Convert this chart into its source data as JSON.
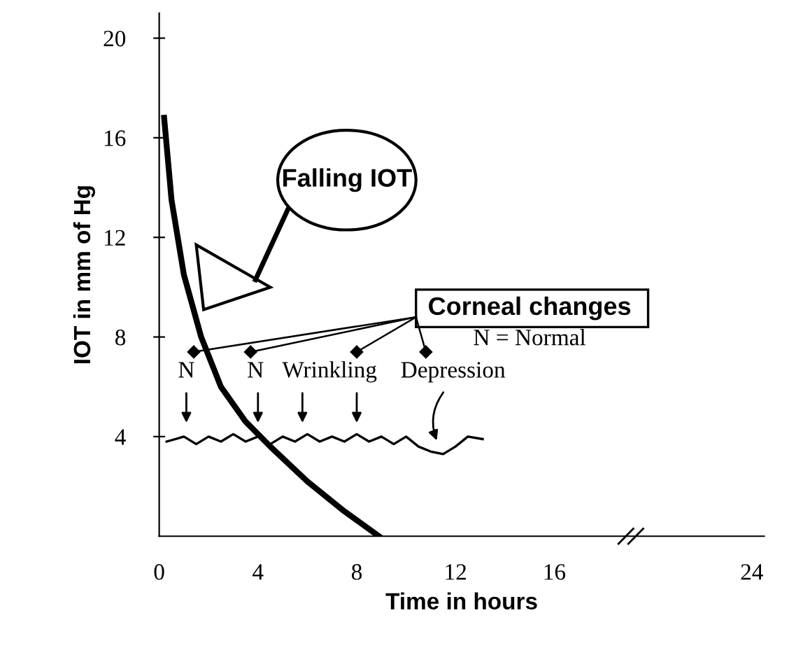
{
  "chart_data": {
    "type": "line",
    "xlabel": "Time in hours",
    "ylabel": "IOT in mm of Hg",
    "xlim": [
      0,
      24.5
    ],
    "ylim": [
      0,
      21
    ],
    "xticks": [
      0,
      4,
      8,
      12,
      16,
      24
    ],
    "yticks": [
      4,
      8,
      12,
      16,
      20
    ],
    "grid": false,
    "legend": false,
    "marker": "none",
    "line_style": "solid",
    "series": [
      {
        "color": "#000000",
        "x": [
          0.2,
          0.5,
          1,
          1.7,
          2.5,
          3.5,
          4.5,
          6,
          7.5,
          8.9
        ],
        "values": [
          16.8,
          13.5,
          10.5,
          8,
          6,
          4.6,
          3.6,
          2.2,
          1,
          0
        ]
      },
      {
        "color": "#000000",
        "x": [
          0.3,
          1,
          1.5,
          2,
          2.5,
          3,
          3.5,
          4,
          4.5,
          5,
          5.5,
          6,
          6.5,
          7,
          7.5,
          8,
          8.5,
          9,
          9.5,
          10,
          10.5,
          11,
          11.5,
          12,
          12.5,
          13.1
        ],
        "values": [
          3.8,
          4,
          3.7,
          4,
          3.8,
          4.1,
          3.8,
          4,
          3.7,
          4,
          3.8,
          4.1,
          3.8,
          4,
          3.8,
          4.1,
          3.8,
          4,
          3.7,
          4,
          3.6,
          3.4,
          3.3,
          3.6,
          4,
          3.9
        ]
      }
    ],
    "annotations": [
      "Falling IOT",
      "Corneal changes",
      "N = Normal",
      "N",
      "N",
      "Wrinkling",
      "Depression"
    ]
  }
}
